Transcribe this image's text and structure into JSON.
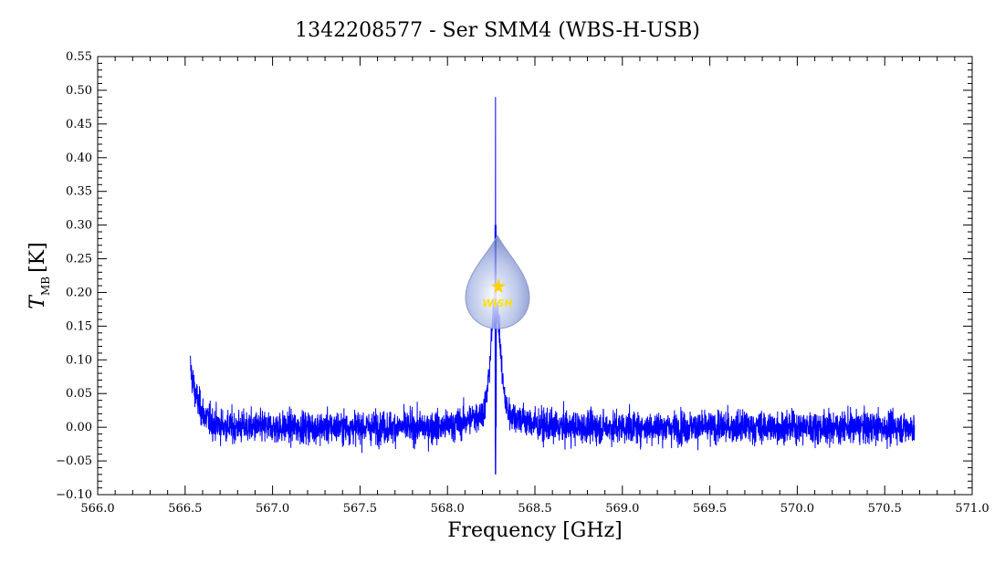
{
  "chart_data": {
    "type": "line",
    "title": "1342208577 - Ser SMM4 (WBS-H-USB)",
    "xlabel": "Frequency [GHz]",
    "ylabel_main": "T",
    "ylabel_sub": "MB",
    "ylabel_unit": "[K]",
    "xlim": [
      566.0,
      571.0
    ],
    "ylim": [
      -0.1,
      0.55
    ],
    "x_ticks": [
      "566.0",
      "566.5",
      "567.0",
      "567.5",
      "568.0",
      "568.5",
      "569.0",
      "569.5",
      "570.0",
      "570.5",
      "571.0"
    ],
    "y_ticks": [
      "-0.10",
      "-0.05",
      "0.00",
      "0.05",
      "0.10",
      "0.15",
      "0.20",
      "0.25",
      "0.30",
      "0.35",
      "0.40",
      "0.45",
      "0.50",
      "0.55"
    ],
    "series": [
      {
        "color": "#0000ff",
        "x_range": [
          566.53,
          570.67
        ],
        "baseline": 0.0,
        "noise_rms": 0.015,
        "edge_rise_start": 0.09,
        "peak": {
          "x": 568.275,
          "y_spike": 0.49,
          "y_spike_min": -0.07,
          "y_broad": 0.16,
          "broad_width_ghz": 0.06
        }
      }
    ],
    "grid": false,
    "legend": "none"
  },
  "logo": {
    "text": "WISH"
  }
}
